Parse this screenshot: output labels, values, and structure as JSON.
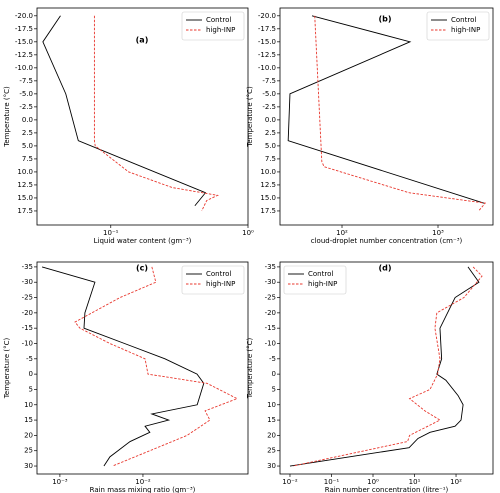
{
  "chart_data": [
    {
      "type": "line",
      "label": "(a)",
      "x_label": "Liquid water content (gm⁻³)",
      "y_label": "Temperature (°C)",
      "x_log": true,
      "y_inverted": true,
      "legend": "upper right",
      "xlim": [
        0.029,
        1
      ],
      "xticks": [
        {
          "value": 0.1,
          "label": "10⁻¹"
        },
        {
          "value": 1,
          "label": "10⁰"
        }
      ],
      "ylim": [
        -21.5,
        20.2
      ],
      "yticks": [
        {
          "value": -20,
          "label": "-20.0"
        },
        {
          "value": -17.5,
          "label": "-17.5"
        },
        {
          "value": -15,
          "label": "-15.0"
        },
        {
          "value": -12.5,
          "label": "-12.5"
        },
        {
          "value": -10,
          "label": "-10.0"
        },
        {
          "value": -7.5,
          "label": "-7.5"
        },
        {
          "value": -5,
          "label": "-5.0"
        },
        {
          "value": -2.5,
          "label": "-2.5"
        },
        {
          "value": 0,
          "label": "0.0"
        },
        2.5,
        {
          "value": 5,
          "label": "5.0"
        },
        7.5,
        {
          "value": 10,
          "label": "10.0"
        },
        12.5,
        {
          "value": 15,
          "label": "15.0"
        },
        17.5
      ],
      "series": [
        {
          "name": "Control",
          "color": "#000000",
          "dash": "solid",
          "x": [
            0.043,
            0.032,
            0.047,
            0.058,
            0.49,
            0.41
          ],
          "y": [
            -20,
            -15,
            -5,
            4,
            14,
            16.5
          ]
        },
        {
          "name": "high-INP",
          "color": "#e8372d",
          "dash": "dashed",
          "x": [
            0.076,
            0.076,
            0.077,
            0.135,
            0.28,
            0.6,
            0.5,
            0.46
          ],
          "y": [
            -20,
            4,
            5,
            10,
            13,
            14.5,
            15.5,
            17.5
          ]
        }
      ]
    },
    {
      "type": "line",
      "label": "(b)",
      "x_label": "cloud-droplet number concentration (cm⁻³)",
      "y_label": "Temperature (°C)",
      "x_log": true,
      "y_inverted": true,
      "legend": "upper right",
      "xlim": [
        22.6,
        3740
      ],
      "xticks": [
        {
          "value": 100,
          "label": "10²"
        },
        {
          "value": 1000,
          "label": "10³"
        }
      ],
      "ylim": [
        -21.5,
        20.2
      ],
      "yticks": [
        {
          "value": -20,
          "label": "-20.0"
        },
        {
          "value": -17.5,
          "label": "-17.5"
        },
        {
          "value": -15,
          "label": "-15.0"
        },
        {
          "value": -12.5,
          "label": "-12.5"
        },
        {
          "value": -10,
          "label": "-10.0"
        },
        {
          "value": -7.5,
          "label": "-7.5"
        },
        {
          "value": -5,
          "label": "-5.0"
        },
        {
          "value": -2.5,
          "label": "-2.5"
        },
        {
          "value": 0,
          "label": "0.0"
        },
        2.5,
        {
          "value": 5,
          "label": "5.0"
        },
        7.5,
        {
          "value": 10,
          "label": "10.0"
        },
        12.5,
        {
          "value": 15,
          "label": "15.0"
        },
        17.5
      ],
      "series": [
        {
          "name": "Control",
          "color": "#000000",
          "dash": "solid",
          "x": [
            48.7,
            511,
            28.7,
            27.5,
            3015
          ],
          "y": [
            -20,
            -15,
            -5,
            4,
            16
          ]
        },
        {
          "name": "high-INP",
          "color": "#e8372d",
          "dash": "dashed",
          "x": [
            52,
            61.6,
            65,
            500,
            3100,
            2650
          ],
          "y": [
            -20,
            8,
            9,
            14,
            16,
            17.5
          ]
        }
      ]
    },
    {
      "type": "line",
      "label": "(c)",
      "x_label": "Rain mass mixing ratio (gm⁻³)",
      "y_label": "Temperature (°C)",
      "x_log": true,
      "y_inverted": true,
      "legend": "upper right",
      "xlim": [
        0.00053,
        0.184
      ],
      "xticks": [
        {
          "value": 0.001,
          "label": "10⁻³"
        },
        {
          "value": 0.01,
          "label": "10⁻²"
        }
      ],
      "ylim": [
        -36.6,
        32.6
      ],
      "yticks": [
        -35,
        -30,
        -25,
        -20,
        -15,
        -10,
        -5,
        0,
        5,
        10,
        15,
        20,
        25,
        30
      ],
      "series": [
        {
          "name": "Control",
          "color": "#000000",
          "dash": "solid",
          "x": [
            0.00061,
            0.00264,
            0.002,
            0.00195,
            0.0184,
            0.0448,
            0.054,
            0.045,
            0.0128,
            0.0204,
            0.0106,
            0.0121,
            0.007,
            0.005,
            0.004,
            0.00339
          ],
          "y": [
            -35,
            -30,
            -20,
            -15,
            -5,
            0,
            3,
            10,
            13,
            15,
            17,
            19,
            22,
            25,
            27,
            30
          ]
        },
        {
          "name": "high-INP",
          "color": "#e8372d",
          "dash": "dashed",
          "x": [
            0.0128,
            0.0143,
            0.0053,
            0.00152,
            0.00174,
            0.004,
            0.0106,
            0.0115,
            0.059,
            0.136,
            0.056,
            0.064,
            0.034,
            0.0121,
            0.0043
          ],
          "y": [
            -35,
            -30,
            -25,
            -17,
            -15,
            -10,
            -5,
            0,
            3,
            8,
            12,
            15,
            20,
            25,
            30
          ]
        }
      ]
    },
    {
      "type": "line",
      "label": "(d)",
      "x_label": "Rain number concentration (litre⁻¹)",
      "y_label": "Temperature (°C)",
      "x_log": true,
      "y_inverted": true,
      "legend": "upper left",
      "xlim": [
        0.00575,
        777
      ],
      "xticks": [
        {
          "value": 0.01,
          "label": "10⁻²"
        },
        {
          "value": 0.1,
          "label": "10⁻¹"
        },
        {
          "value": 1,
          "label": "10⁰"
        },
        {
          "value": 10,
          "label": "10¹"
        },
        {
          "value": 100,
          "label": "10²"
        }
      ],
      "ylim": [
        -36.6,
        32.6
      ],
      "yticks": [
        -35,
        -30,
        -25,
        -20,
        -15,
        -10,
        -5,
        0,
        5,
        10,
        15,
        20,
        25,
        30
      ],
      "series": [
        {
          "name": "Control",
          "color": "#000000",
          "dash": "solid",
          "x": [
            194,
            356,
            95,
            41,
            45,
            34.5,
            57,
            112,
            148,
            132,
            95,
            23.6,
            12.1,
            7.4,
            0.01
          ],
          "y": [
            -35,
            -30,
            -25,
            -15,
            -5,
            0,
            2,
            7,
            10,
            15,
            17,
            19,
            21,
            24,
            30
          ]
        },
        {
          "name": "high-INP",
          "color": "#e8372d",
          "dash": "dashed",
          "x": [
            258,
            423,
            155,
            34.5,
            31,
            41,
            36,
            23.6,
            7.6,
            17.8,
            41,
            7.6,
            6.8,
            0.0118
          ],
          "y": [
            -35,
            -32,
            -25,
            -20,
            -15,
            -5,
            0,
            5,
            8,
            12,
            15,
            20,
            22,
            30
          ]
        }
      ]
    }
  ]
}
